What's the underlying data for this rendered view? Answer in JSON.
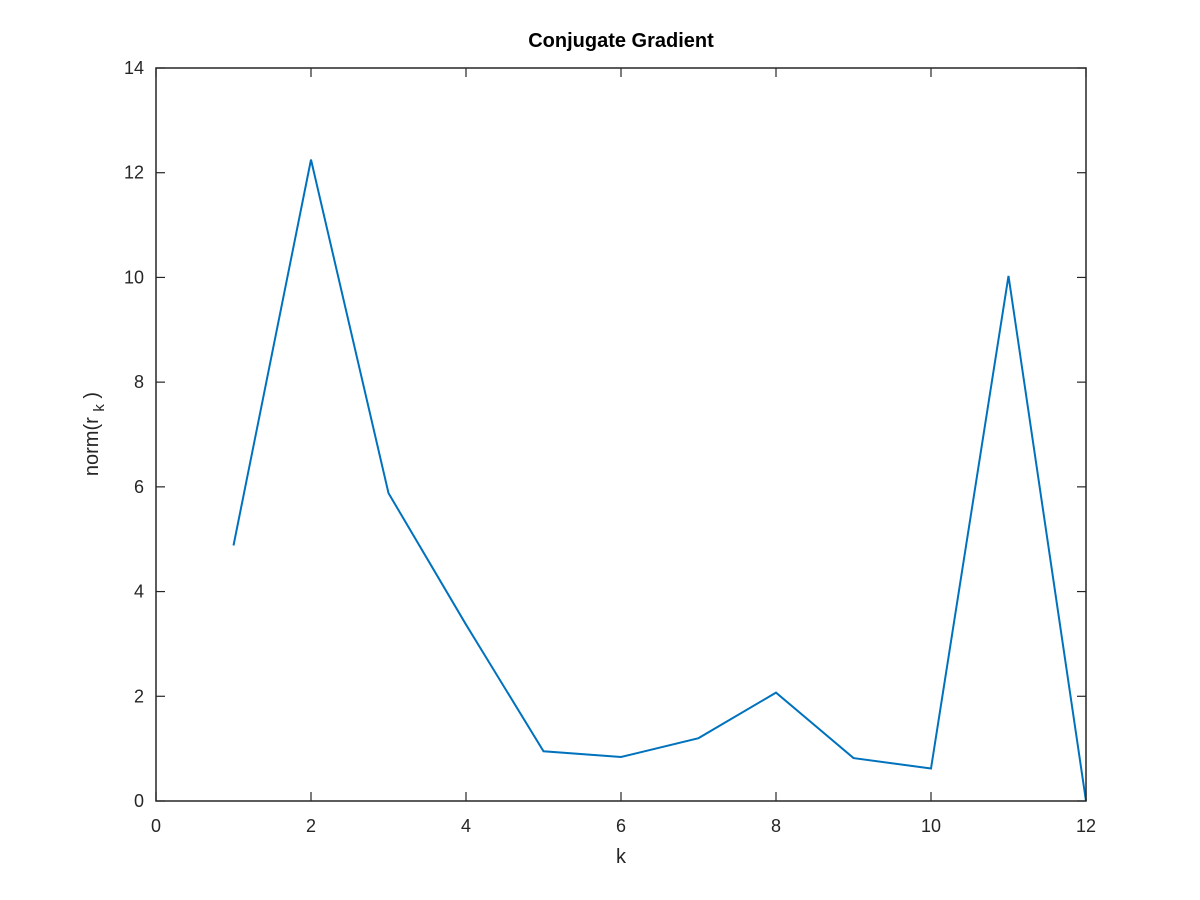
{
  "chart_data": {
    "type": "line",
    "title": "Conjugate Gradient",
    "xlabel": "k",
    "ylabel_main": "norm(r",
    "ylabel_sub": "k",
    "ylabel_close": ")",
    "xlim": [
      0,
      12
    ],
    "ylim": [
      0,
      14
    ],
    "xticks": [
      0,
      2,
      4,
      6,
      8,
      10,
      12
    ],
    "yticks": [
      0,
      2,
      4,
      6,
      8,
      10,
      12,
      14
    ],
    "grid": false,
    "legend": "none",
    "line_color": "#0072BD",
    "x": [
      1,
      2,
      3,
      4,
      5,
      6,
      7,
      8,
      9,
      10,
      11,
      12
    ],
    "y": [
      4.88,
      12.25,
      5.88,
      3.37,
      0.95,
      0.84,
      1.2,
      2.07,
      0.82,
      0.62,
      10.03,
      0.0
    ]
  }
}
